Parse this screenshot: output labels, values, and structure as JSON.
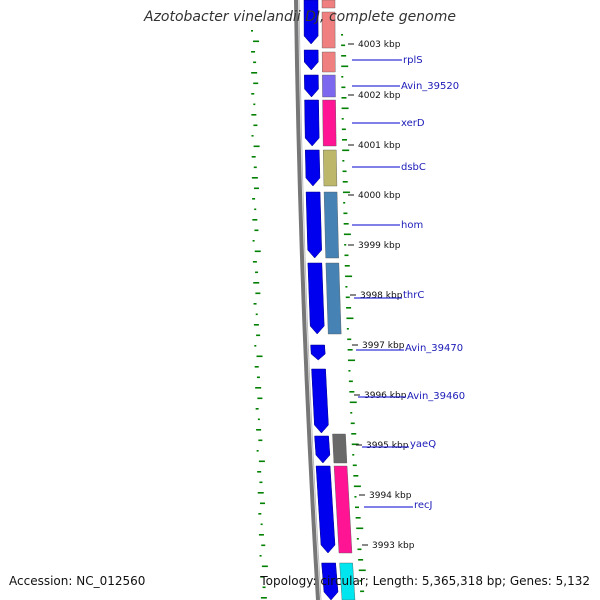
{
  "title": "Azotobacter vinelandii DJ, complete genome",
  "accession": "Accession: NC_012560",
  "summary": "Topology: circular; Length: 5,365,318 bp; Genes: 5,132",
  "kbp_labels": [
    "4003 kbp",
    "4002 kbp",
    "4001 kbp",
    "4000 kbp",
    "3999 kbp",
    "3998 kbp",
    "3997 kbp",
    "3996 kbp",
    "3995 kbp",
    "3994 kbp",
    "3993 kbp"
  ],
  "genes": [
    {
      "name": "rplS",
      "color": "#f08080"
    },
    {
      "name": "Avin_39520",
      "color": "#7b68ee"
    },
    {
      "name": "xerD",
      "color": "#ff1493"
    },
    {
      "name": "dsbC",
      "color": "#bdb76b"
    },
    {
      "name": "hom",
      "color": "#4682b4"
    },
    {
      "name": "thrC",
      "color": "#4682b4"
    },
    {
      "name": "Avin_39470",
      "color": ""
    },
    {
      "name": "Avin_39460",
      "color": ""
    },
    {
      "name": "yaeQ",
      "color": "#696969"
    },
    {
      "name": "recJ",
      "color": "#ff1493"
    }
  ],
  "colors": {
    "cds": "#0000ee",
    "backbone": "#777777",
    "gc_ticks": "#008000",
    "label_line": "#0000cc"
  }
}
